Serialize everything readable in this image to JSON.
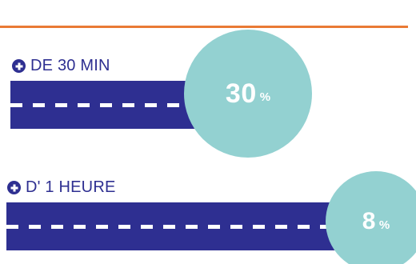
{
  "colors": {
    "accent_rule": "#e97a35",
    "navy": "#2e2f91",
    "teal_bubble": "#93d1d1",
    "white": "#ffffff"
  },
  "rows": [
    {
      "icon": "plus-circle-icon",
      "label": "DE 30 MIN",
      "value": "30",
      "unit": "%"
    },
    {
      "icon": "plus-circle-icon",
      "label": "D' 1 HEURE",
      "value": "8",
      "unit": "%"
    }
  ]
}
